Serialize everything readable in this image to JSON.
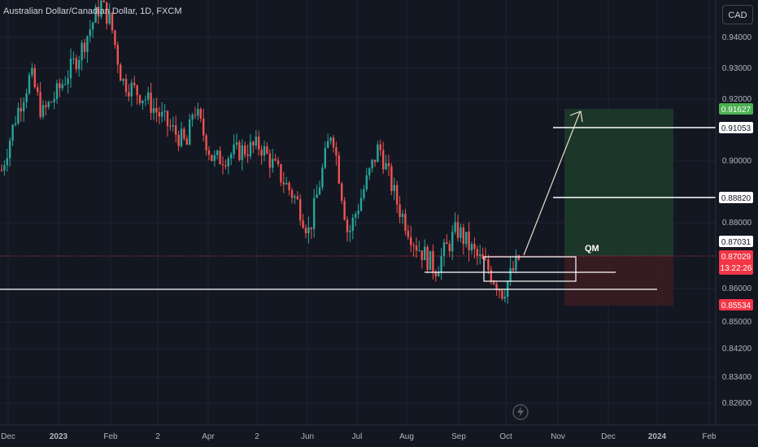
{
  "header": {
    "symbol_title": "Australian Dollar/Canadian Dollar, 1D, FXCM"
  },
  "currency_button": "CAD",
  "colors": {
    "background": "#131722",
    "up": "#26a69a",
    "down": "#ef5350",
    "target_zone": "#1e3a2a",
    "stop_zone": "#3b1c22",
    "target_label": "#4caf50",
    "stop_label": "#f23645",
    "current_label": "#f23645",
    "line": "#ffffff"
  },
  "annotation": {
    "label": "QM"
  },
  "chart_data": {
    "type": "candlestick",
    "title": "Australian Dollar/Canadian Dollar",
    "interval": "1D",
    "source": "FXCM",
    "currency": "CAD",
    "x_tick_labels": [
      "Dec",
      "2023",
      "Feb",
      "2",
      "Apr",
      "2",
      "Jun",
      "Jul",
      "Aug",
      "Sep",
      "Oct",
      "Nov",
      "Dec",
      "2024",
      "Feb"
    ],
    "y_tick_labels": [
      "0.94000",
      "0.93000",
      "0.92000",
      "0.90000",
      "0.88000",
      "0.86000",
      "0.85000",
      "0.84200",
      "0.83400",
      "0.82600"
    ],
    "price_levels": {
      "target": "0.91627",
      "tp_line": "0.91053",
      "mid_line": "0.88820",
      "last_close": "0.87031",
      "current_price": "0.87029",
      "countdown": "13:22:26",
      "stop": "0.85534"
    },
    "price_path": [
      {
        "date": "2022-12",
        "price": 0.897
      },
      {
        "date": "2022-12",
        "price": 0.915
      },
      {
        "date": "2022-12",
        "price": 0.928
      },
      {
        "date": "2023-01",
        "price": 0.915
      },
      {
        "date": "2023-01",
        "price": 0.922
      },
      {
        "date": "2023-01",
        "price": 0.935
      },
      {
        "date": "2023-01",
        "price": 0.951
      },
      {
        "date": "2023-02",
        "price": 0.945
      },
      {
        "date": "2023-02",
        "price": 0.926
      },
      {
        "date": "2023-02",
        "price": 0.92
      },
      {
        "date": "2023-03",
        "price": 0.912
      },
      {
        "date": "2023-03",
        "price": 0.905
      },
      {
        "date": "2023-04",
        "price": 0.918
      },
      {
        "date": "2023-04",
        "price": 0.9
      },
      {
        "date": "2023-05",
        "price": 0.903
      },
      {
        "date": "2023-05",
        "price": 0.905
      },
      {
        "date": "2023-05",
        "price": 0.895
      },
      {
        "date": "2023-06",
        "price": 0.887
      },
      {
        "date": "2023-06",
        "price": 0.877
      },
      {
        "date": "2023-06",
        "price": 0.911
      },
      {
        "date": "2023-07",
        "price": 0.876
      },
      {
        "date": "2023-07",
        "price": 0.905
      },
      {
        "date": "2023-07",
        "price": 0.885
      },
      {
        "date": "2023-08",
        "price": 0.874
      },
      {
        "date": "2023-08",
        "price": 0.866
      },
      {
        "date": "2023-08",
        "price": 0.878
      },
      {
        "date": "2023-09",
        "price": 0.87
      },
      {
        "date": "2023-09",
        "price": 0.866
      },
      {
        "date": "2023-10",
        "price": 0.859
      },
      {
        "date": "2023-10",
        "price": 0.87
      }
    ]
  }
}
